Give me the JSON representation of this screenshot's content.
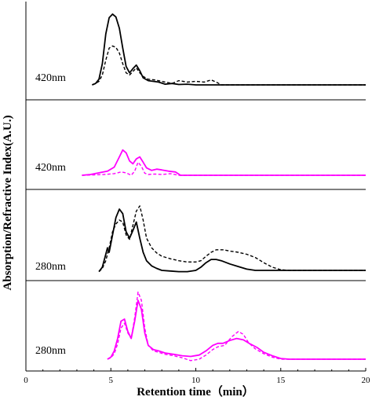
{
  "chart_data": {
    "type": "line",
    "xlabel": "Retention time（min）",
    "ylabel": "Absorption/Refractive Index(A.U.)",
    "xlim": [
      0,
      20
    ],
    "xticks": [
      "0",
      "5",
      "10",
      "15",
      "20"
    ],
    "legend": "none",
    "grid": false,
    "panels": [
      {
        "label": "420nm",
        "color": "#000000",
        "ylim": [
          0,
          1
        ],
        "series": [
          {
            "style": "solid",
            "x": [
              3.9,
              4.1,
              4.3,
              4.5,
              4.7,
              4.9,
              5.1,
              5.3,
              5.5,
              5.7,
              5.9,
              6.1,
              6.3,
              6.5,
              6.7,
              6.9,
              7.2,
              7.5,
              7.8,
              8.2,
              8.6,
              9.0,
              9.5,
              10,
              20
            ],
            "y": [
              0.0,
              0.02,
              0.08,
              0.3,
              0.72,
              0.95,
              1.0,
              0.96,
              0.8,
              0.52,
              0.26,
              0.17,
              0.23,
              0.28,
              0.2,
              0.1,
              0.06,
              0.05,
              0.04,
              0.01,
              0.02,
              0.005,
              0.01,
              0.0,
              0.0
            ]
          },
          {
            "style": "dashed",
            "x": [
              3.9,
              4.1,
              4.3,
              4.5,
              4.7,
              4.9,
              5.1,
              5.3,
              5.5,
              5.7,
              5.9,
              6.1,
              6.3,
              6.5,
              6.7,
              6.9,
              7.2,
              7.6,
              8.0,
              8.6,
              9.0,
              9.5,
              10.0,
              10.5,
              10.9,
              11.2,
              11.5,
              20
            ],
            "y": [
              0.0,
              0.02,
              0.05,
              0.14,
              0.35,
              0.52,
              0.55,
              0.53,
              0.45,
              0.3,
              0.17,
              0.14,
              0.19,
              0.24,
              0.17,
              0.12,
              0.08,
              0.07,
              0.05,
              0.02,
              0.06,
              0.04,
              0.05,
              0.04,
              0.07,
              0.04,
              0.0,
              0.0
            ]
          }
        ]
      },
      {
        "label": "420nm",
        "color": "#ff00ff",
        "ylim": [
          0,
          1
        ],
        "series": [
          {
            "style": "solid",
            "x": [
              3.3,
              3.8,
              4.3,
              4.8,
              5.2,
              5.5,
              5.7,
              5.9,
              6.1,
              6.3,
              6.5,
              6.7,
              6.9,
              7.1,
              7.4,
              7.7,
              8.0,
              8.4,
              8.8,
              9.1,
              20
            ],
            "y": [
              0.0,
              0.02,
              0.06,
              0.1,
              0.2,
              0.45,
              0.62,
              0.55,
              0.35,
              0.28,
              0.4,
              0.45,
              0.32,
              0.18,
              0.12,
              0.15,
              0.13,
              0.1,
              0.08,
              0.0,
              0.0
            ]
          },
          {
            "style": "dashed",
            "x": [
              3.3,
              4.0,
              4.6,
              5.2,
              5.6,
              5.9,
              6.2,
              6.4,
              6.6,
              6.8,
              7.0,
              7.2,
              7.6,
              8.0,
              8.5,
              9.0,
              20
            ],
            "y": [
              0.0,
              0.01,
              0.02,
              0.04,
              0.08,
              0.06,
              0.0,
              0.1,
              0.32,
              0.22,
              0.05,
              0.02,
              0.03,
              0.02,
              0.04,
              0.0,
              0.0
            ]
          }
        ]
      },
      {
        "label": "280nm",
        "color": "#000000",
        "ylim": [
          0,
          1
        ],
        "series": [
          {
            "style": "solid",
            "x": [
              4.3,
              4.5,
              4.7,
              4.8,
              4.9,
              5.1,
              5.3,
              5.5,
              5.7,
              5.9,
              6.1,
              6.3,
              6.5,
              6.7,
              6.9,
              7.1,
              7.4,
              7.7,
              8.0,
              8.5,
              9.0,
              9.5,
              10.0,
              10.3,
              10.6,
              10.9,
              11.2,
              11.5,
              12.0,
              12.5,
              13.0,
              13.5,
              20
            ],
            "y": [
              -0.02,
              0.05,
              0.25,
              0.35,
              0.28,
              0.55,
              0.82,
              0.95,
              0.88,
              0.6,
              0.5,
              0.62,
              0.75,
              0.5,
              0.28,
              0.15,
              0.07,
              0.03,
              0.0,
              -0.01,
              -0.02,
              -0.02,
              0.0,
              0.05,
              0.12,
              0.17,
              0.17,
              0.15,
              0.1,
              0.06,
              0.02,
              0.0,
              0.0
            ]
          },
          {
            "style": "dashed",
            "x": [
              4.3,
              4.5,
              4.7,
              4.9,
              5.1,
              5.3,
              5.5,
              5.7,
              5.9,
              6.1,
              6.3,
              6.5,
              6.7,
              6.9,
              7.1,
              7.4,
              7.7,
              8.0,
              8.5,
              9.0,
              9.5,
              10.0,
              10.3,
              10.6,
              10.9,
              11.2,
              11.6,
              12.0,
              12.5,
              13.0,
              13.5,
              14.0,
              14.5,
              15.0,
              15.5,
              20
            ],
            "y": [
              -0.02,
              0.03,
              0.15,
              0.35,
              0.6,
              0.72,
              0.78,
              0.75,
              0.55,
              0.48,
              0.7,
              0.92,
              1.0,
              0.78,
              0.5,
              0.35,
              0.27,
              0.22,
              0.18,
              0.15,
              0.13,
              0.13,
              0.15,
              0.22,
              0.28,
              0.32,
              0.32,
              0.3,
              0.28,
              0.25,
              0.2,
              0.12,
              0.05,
              0.01,
              0.0,
              0.0
            ]
          }
        ]
      },
      {
        "label": "280nm",
        "color": "#ff00ff",
        "ylim": [
          0,
          1
        ],
        "series": [
          {
            "style": "solid",
            "x": [
              4.8,
              5.0,
              5.2,
              5.4,
              5.6,
              5.8,
              6.0,
              6.2,
              6.4,
              6.6,
              6.8,
              7.0,
              7.2,
              7.5,
              7.8,
              8.2,
              8.7,
              9.2,
              9.7,
              10.2,
              10.6,
              11.0,
              11.3,
              11.6,
              12.0,
              12.4,
              12.8,
              13.2,
              13.6,
              14.0,
              14.5,
              15.0,
              15.5,
              20
            ],
            "y": [
              0.0,
              0.03,
              0.12,
              0.3,
              0.55,
              0.58,
              0.4,
              0.3,
              0.55,
              0.85,
              0.72,
              0.38,
              0.2,
              0.14,
              0.12,
              0.09,
              0.07,
              0.05,
              0.04,
              0.06,
              0.12,
              0.2,
              0.23,
              0.23,
              0.27,
              0.3,
              0.28,
              0.22,
              0.17,
              0.1,
              0.05,
              0.01,
              0.0,
              0.0
            ]
          },
          {
            "style": "dashed",
            "x": [
              4.8,
              5.0,
              5.2,
              5.4,
              5.6,
              5.8,
              6.0,
              6.2,
              6.4,
              6.6,
              6.8,
              7.0,
              7.2,
              7.5,
              7.8,
              8.2,
              8.7,
              9.2,
              9.7,
              10.2,
              10.6,
              11.0,
              11.3,
              11.7,
              12.1,
              12.5,
              12.8,
              13.1,
              13.5,
              14.0,
              14.5,
              15.0,
              15.5,
              20
            ],
            "y": [
              0.0,
              0.02,
              0.08,
              0.22,
              0.45,
              0.52,
              0.38,
              0.3,
              0.6,
              0.97,
              0.85,
              0.45,
              0.2,
              0.12,
              0.1,
              0.07,
              0.05,
              0.02,
              -0.02,
              0.0,
              0.06,
              0.14,
              0.18,
              0.2,
              0.32,
              0.4,
              0.36,
              0.24,
              0.15,
              0.08,
              0.03,
              0.0,
              0.0,
              0.0
            ]
          }
        ]
      }
    ]
  }
}
